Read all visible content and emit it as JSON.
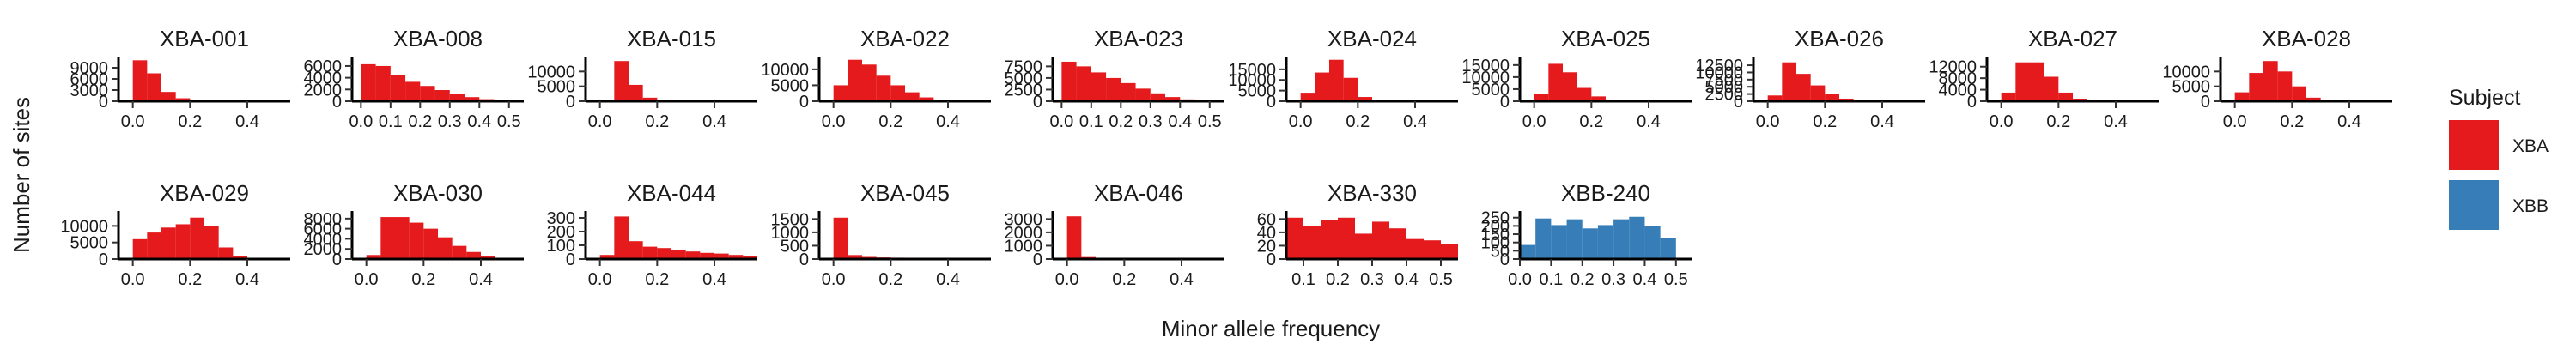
{
  "chart_data": {
    "type": "histogram-facets",
    "xlabel": "Minor allele frequency",
    "ylabel": "Number of sites",
    "legend": {
      "title": "Subject",
      "position": "right",
      "entries": [
        {
          "label": "XBA",
          "color": "#e41a1c"
        },
        {
          "label": "XBB",
          "color": "#377eb8"
        }
      ]
    },
    "panels": [
      {
        "name": "XBA-001",
        "subject": "XBA",
        "xlim": [
          -0.05,
          0.55
        ],
        "xticks": [
          "0.0",
          "0.2",
          "0.4"
        ],
        "ymax": 12000,
        "yticks": [
          0,
          3000,
          6000,
          9000
        ],
        "bins": [
          0,
          0.05,
          0.1,
          0.15,
          0.2,
          0.25
        ],
        "counts": [
          11000,
          7500,
          2500,
          800,
          300
        ]
      },
      {
        "name": "XBA-008",
        "subject": "XBA",
        "xlim": [
          -0.03,
          0.55
        ],
        "xticks": [
          "0.0",
          "0.1",
          "0.2",
          "0.3",
          "0.4",
          "0.5"
        ],
        "ymax": 7600,
        "yticks": [
          0,
          2000,
          4000,
          6000
        ],
        "bins": [
          0,
          0.05,
          0.1,
          0.15,
          0.2,
          0.25,
          0.3,
          0.35,
          0.4,
          0.45,
          0.5
        ],
        "counts": [
          6300,
          6000,
          4400,
          3300,
          2600,
          1900,
          1200,
          700,
          350,
          150
        ]
      },
      {
        "name": "XBA-015",
        "subject": "XBA",
        "xlim": [
          -0.05,
          0.55
        ],
        "xticks": [
          "0.0",
          "0.2",
          "0.4"
        ],
        "ymax": 15000,
        "yticks": [
          0,
          5000,
          10000
        ],
        "bins": [
          0,
          0.05,
          0.1,
          0.15,
          0.2,
          0.25,
          0.3
        ],
        "counts": [
          500,
          13500,
          5500,
          1200,
          400,
          150
        ]
      },
      {
        "name": "XBA-022",
        "subject": "XBA",
        "xlim": [
          -0.05,
          0.55
        ],
        "xticks": [
          "0.0",
          "0.2",
          "0.4"
        ],
        "ymax": 14000,
        "yticks": [
          0,
          5000,
          10000
        ],
        "bins": [
          0,
          0.05,
          0.1,
          0.15,
          0.2,
          0.25,
          0.3,
          0.35,
          0.4
        ],
        "counts": [
          5000,
          13000,
          11500,
          8000,
          5000,
          2800,
          1200,
          400
        ]
      },
      {
        "name": "XBA-023",
        "subject": "XBA",
        "xlim": [
          -0.03,
          0.55
        ],
        "xticks": [
          "0.0",
          "0.1",
          "0.2",
          "0.3",
          "0.4",
          "0.5"
        ],
        "ymax": 9600,
        "yticks": [
          0,
          2500,
          5000,
          7500
        ],
        "bins": [
          0,
          0.05,
          0.1,
          0.15,
          0.2,
          0.25,
          0.3,
          0.35,
          0.4,
          0.45,
          0.5
        ],
        "counts": [
          8500,
          7500,
          6200,
          5000,
          3900,
          2700,
          1700,
          900,
          400,
          150
        ]
      },
      {
        "name": "XBA-024",
        "subject": "XBA",
        "xlim": [
          -0.05,
          0.55
        ],
        "xticks": [
          "0.0",
          "0.2",
          "0.4"
        ],
        "ymax": 21000,
        "yticks": [
          0,
          5000,
          10000,
          15000
        ],
        "bins": [
          0,
          0.05,
          0.1,
          0.15,
          0.2,
          0.25,
          0.3
        ],
        "counts": [
          4000,
          13500,
          19500,
          11000,
          2000,
          400
        ]
      },
      {
        "name": "XBA-025",
        "subject": "XBA",
        "xlim": [
          -0.05,
          0.55
        ],
        "xticks": [
          "0.0",
          "0.2",
          "0.4"
        ],
        "ymax": 18500,
        "yticks": [
          0,
          5000,
          10000,
          15000
        ],
        "bins": [
          0,
          0.05,
          0.1,
          0.15,
          0.2,
          0.25,
          0.3,
          0.35
        ],
        "counts": [
          3000,
          15500,
          12000,
          5500,
          2000,
          700,
          250
        ]
      },
      {
        "name": "XBA-026",
        "subject": "XBA",
        "xlim": [
          -0.05,
          0.55
        ],
        "xticks": [
          "0.0",
          "0.2",
          "0.4"
        ],
        "ymax": 15500,
        "yticks": [
          0,
          2500,
          5000,
          7500,
          10000,
          12500
        ],
        "bins": [
          0,
          0.05,
          0.1,
          0.15,
          0.2,
          0.25,
          0.3,
          0.35
        ],
        "counts": [
          2000,
          13500,
          9500,
          5500,
          2500,
          900,
          300
        ]
      },
      {
        "name": "XBA-027",
        "subject": "XBA",
        "xlim": [
          -0.05,
          0.55
        ],
        "xticks": [
          "0.0",
          "0.2",
          "0.4"
        ],
        "ymax": 15500,
        "yticks": [
          0,
          4000,
          8000,
          12000
        ],
        "bins": [
          0,
          0.05,
          0.1,
          0.15,
          0.2,
          0.25,
          0.3,
          0.35
        ],
        "counts": [
          3000,
          13500,
          13500,
          8500,
          3000,
          900,
          300
        ]
      },
      {
        "name": "XBA-028",
        "subject": "XBA",
        "xlim": [
          -0.05,
          0.55
        ],
        "xticks": [
          "0.0",
          "0.2",
          "0.4"
        ],
        "ymax": 15000,
        "yticks": [
          0,
          5000,
          10000
        ],
        "bins": [
          0,
          0.05,
          0.1,
          0.15,
          0.2,
          0.25,
          0.3,
          0.35
        ],
        "counts": [
          3000,
          9500,
          13500,
          10000,
          5000,
          1200,
          400
        ]
      },
      {
        "name": "XBA-029",
        "subject": "XBA",
        "xlim": [
          -0.05,
          0.55
        ],
        "xticks": [
          "0.0",
          "0.2",
          "0.4"
        ],
        "ymax": 14500,
        "yticks": [
          0,
          5000,
          10000
        ],
        "bins": [
          0,
          0.05,
          0.1,
          0.15,
          0.2,
          0.25,
          0.3,
          0.35,
          0.4,
          0.45,
          0.5
        ],
        "counts": [
          6000,
          8000,
          9500,
          10500,
          12500,
          10000,
          3500,
          900,
          250,
          100
        ]
      },
      {
        "name": "XBA-030",
        "subject": "XBA",
        "xlim": [
          -0.05,
          0.55
        ],
        "xticks": [
          "0.0",
          "0.2",
          "0.4"
        ],
        "ymax": 9500,
        "yticks": [
          0,
          2000,
          4000,
          6000,
          8000
        ],
        "bins": [
          0,
          0.05,
          0.1,
          0.15,
          0.2,
          0.25,
          0.3,
          0.35,
          0.4,
          0.45,
          0.5
        ],
        "counts": [
          800,
          8300,
          8300,
          7200,
          6000,
          4300,
          2600,
          1400,
          650,
          250
        ]
      },
      {
        "name": "XBA-044",
        "subject": "XBA",
        "xlim": [
          -0.05,
          0.55
        ],
        "xticks": [
          "0.0",
          "0.2",
          "0.4"
        ],
        "ymax": 350,
        "yticks": [
          0,
          100,
          200,
          300
        ],
        "bins": [
          0,
          0.05,
          0.1,
          0.15,
          0.2,
          0.25,
          0.3,
          0.35,
          0.4,
          0.45,
          0.5,
          0.55
        ],
        "counts": [
          30,
          310,
          130,
          90,
          80,
          65,
          55,
          45,
          40,
          30,
          20
        ]
      },
      {
        "name": "XBA-045",
        "subject": "XBA",
        "xlim": [
          -0.05,
          0.55
        ],
        "xticks": [
          "0.0",
          "0.2",
          "0.4"
        ],
        "ymax": 1800,
        "yticks": [
          0,
          500,
          1000,
          1500
        ],
        "bins": [
          0,
          0.05,
          0.1,
          0.15,
          0.2,
          0.25,
          0.3,
          0.35,
          0.4,
          0.45,
          0.5
        ],
        "counts": [
          1550,
          150,
          80,
          60,
          50,
          40,
          30,
          25,
          20,
          15
        ]
      },
      {
        "name": "XBA-046",
        "subject": "XBA",
        "xlim": [
          -0.05,
          0.55
        ],
        "xticks": [
          "0.0",
          "0.2",
          "0.4"
        ],
        "ymax": 3600,
        "yticks": [
          0,
          1000,
          2000,
          3000
        ],
        "bins": [
          0,
          0.05,
          0.1,
          0.15,
          0.2,
          0.25,
          0.3,
          0.35,
          0.4,
          0.45,
          0.5
        ],
        "counts": [
          3200,
          150,
          80,
          60,
          50,
          40,
          30,
          25,
          20,
          15
        ]
      },
      {
        "name": "XBA-330",
        "subject": "XBA",
        "xlim": [
          0.05,
          0.55
        ],
        "xticks": [
          "0.1",
          "0.2",
          "0.3",
          "0.4",
          "0.5"
        ],
        "ymax": 72,
        "yticks": [
          0,
          20,
          40,
          60
        ],
        "bins": [
          0.05,
          0.1,
          0.15,
          0.2,
          0.25,
          0.3,
          0.35,
          0.4,
          0.45,
          0.5,
          0.55
        ],
        "counts": [
          62,
          50,
          58,
          62,
          38,
          56,
          46,
          30,
          28,
          22
        ]
      },
      {
        "name": "XBB-240",
        "subject": "XBB",
        "xlim": [
          0.0,
          0.55
        ],
        "xticks": [
          "0.0",
          "0.1",
          "0.2",
          "0.3",
          "0.4",
          "0.5"
        ],
        "ymax": 290,
        "yticks": [
          0,
          50,
          100,
          150,
          200,
          250
        ],
        "bins": [
          0,
          0.05,
          0.1,
          0.15,
          0.2,
          0.25,
          0.3,
          0.35,
          0.4,
          0.45,
          0.5
        ],
        "counts": [
          85,
          245,
          205,
          240,
          185,
          205,
          240,
          255,
          200,
          125
        ]
      }
    ]
  }
}
